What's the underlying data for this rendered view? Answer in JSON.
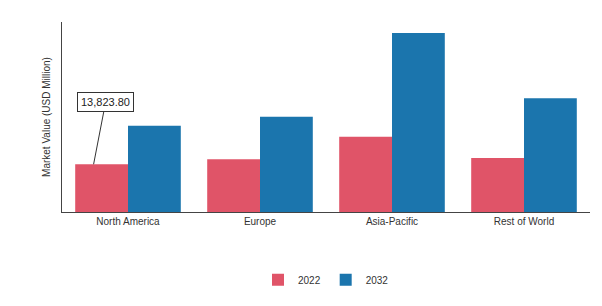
{
  "chart_data": {
    "type": "bar",
    "y_label": "Market Value (USD Million)",
    "categories": [
      "North America",
      "Europe",
      "Asia-Pacific",
      "Rest of World"
    ],
    "series": [
      {
        "name": "2022",
        "color": "#e05468",
        "values": [
          13823.8,
          15300,
          21800,
          15600
        ]
      },
      {
        "name": "2032",
        "color": "#1b75ad",
        "values": [
          25000,
          27600,
          51800,
          32900
        ]
      }
    ],
    "ylim": [
      0,
      55000
    ],
    "tick_labels": "x",
    "grid": false,
    "legend": "bottom",
    "annotations": [
      {
        "text": "13,823.80",
        "category": "North America",
        "series": "2022",
        "value": 13823.8
      }
    ]
  }
}
